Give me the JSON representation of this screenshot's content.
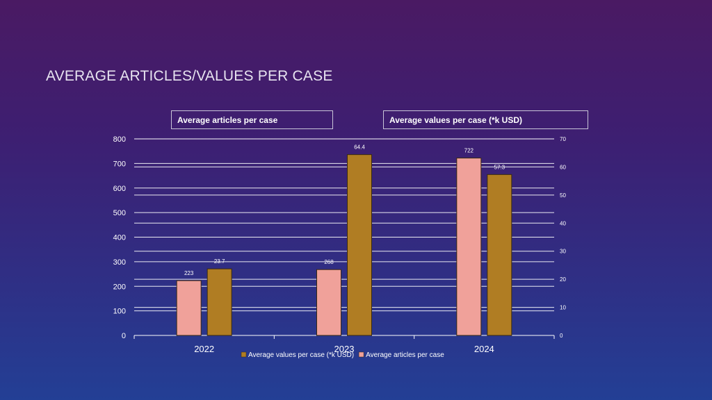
{
  "slide": {
    "title": "AVERAGE ARTICLES/VALUES PER CASE"
  },
  "legend_boxes": {
    "left": "Average articles per case",
    "right": "Average values per case (*k USD)"
  },
  "colors": {
    "articles": "#f0a19a",
    "values": "#b07d23",
    "bar_stroke": "#3a2a10"
  },
  "chart_data": {
    "type": "bar",
    "categories": [
      "2022",
      "2023",
      "2024"
    ],
    "series": [
      {
        "name": "Average articles per case",
        "axis": "left",
        "values": [
          223,
          268,
          722
        ],
        "labels": [
          "223",
          "268",
          "722"
        ]
      },
      {
        "name": "Average values per case (*k USD)",
        "axis": "right",
        "values": [
          23.7,
          64.4,
          57.3
        ],
        "labels": [
          "23.7",
          "64.4",
          "57.3"
        ]
      }
    ],
    "y_left": {
      "min": 0,
      "max": 800,
      "ticks": [
        "0",
        "100",
        "200",
        "300",
        "400",
        "500",
        "600",
        "700",
        "800"
      ]
    },
    "y_right": {
      "min": 0,
      "max": 70,
      "ticks": [
        "0",
        "10",
        "20",
        "30",
        "40",
        "50",
        "60",
        "70"
      ]
    },
    "legend": [
      {
        "name": "Average values per case (*k USD)",
        "series": 1
      },
      {
        "name": "Average articles per case",
        "series": 0
      }
    ],
    "legend_position": "bottom",
    "grid": true
  }
}
